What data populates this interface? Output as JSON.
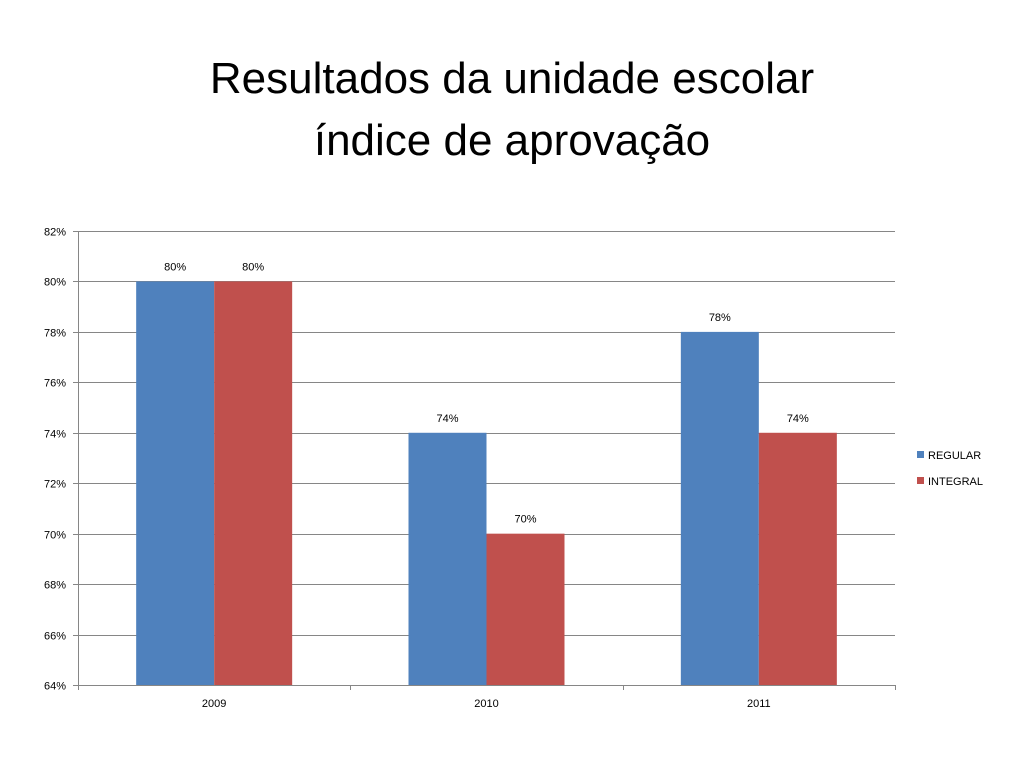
{
  "slide": {
    "title_line1": "Resultados da unidade escolar",
    "title_line2": "índice de aprovação"
  },
  "chart_data": {
    "type": "bar",
    "categories": [
      "2009",
      "2010",
      "2011"
    ],
    "series": [
      {
        "name": "REGULAR",
        "values": [
          0.8,
          0.74,
          0.78
        ],
        "labels": [
          "80%",
          "74%",
          "78%"
        ],
        "color": "#4F81BD"
      },
      {
        "name": "INTEGRAL",
        "values": [
          0.8,
          0.7,
          0.74
        ],
        "labels": [
          "80%",
          "70%",
          "74%"
        ],
        "color": "#C0504D"
      }
    ],
    "ylim": [
      0.64,
      0.82
    ],
    "yticks": [
      {
        "value": 0.64,
        "label": "64%"
      },
      {
        "value": 0.66,
        "label": "66%"
      },
      {
        "value": 0.68,
        "label": "68%"
      },
      {
        "value": 0.7,
        "label": "70%"
      },
      {
        "value": 0.72,
        "label": "72%"
      },
      {
        "value": 0.74,
        "label": "74%"
      },
      {
        "value": 0.76,
        "label": "76%"
      },
      {
        "value": 0.78,
        "label": "78%"
      },
      {
        "value": 0.8,
        "label": "80%"
      },
      {
        "value": 0.82,
        "label": "82%"
      }
    ],
    "grid": true,
    "legend_position": "right",
    "gridline_color": "#868686",
    "axis_color": "#868686"
  }
}
